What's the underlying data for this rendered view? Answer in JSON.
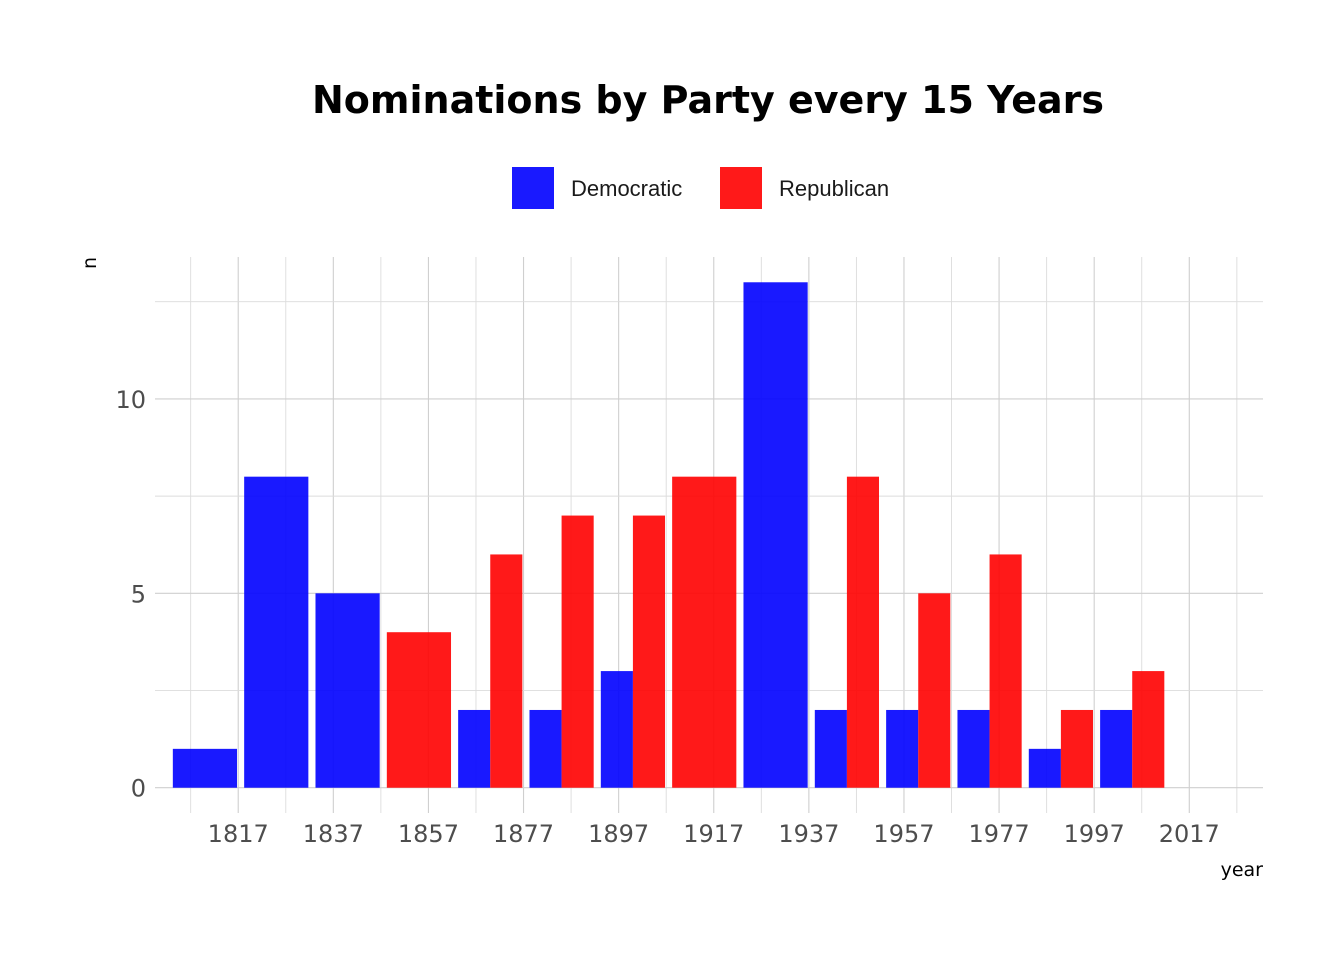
{
  "chart_data": {
    "type": "bar",
    "title": "Nominations by Party every 15 Years",
    "xlabel": "year",
    "ylabel": "n",
    "bar_groups": [
      {
        "bin_center": 1810,
        "Democratic": 1,
        "Republican": null
      },
      {
        "bin_center": 1825,
        "Democratic": 8,
        "Republican": null
      },
      {
        "bin_center": 1840,
        "Democratic": 5,
        "Republican": null
      },
      {
        "bin_center": 1855,
        "Democratic": null,
        "Republican": 4
      },
      {
        "bin_center": 1870,
        "Democratic": 2,
        "Republican": 6
      },
      {
        "bin_center": 1885,
        "Democratic": 2,
        "Republican": 7
      },
      {
        "bin_center": 1900,
        "Democratic": 3,
        "Republican": 7
      },
      {
        "bin_center": 1915,
        "Democratic": null,
        "Republican": 8
      },
      {
        "bin_center": 1930,
        "Democratic": 13,
        "Republican": null
      },
      {
        "bin_center": 1945,
        "Democratic": 2,
        "Republican": 8
      },
      {
        "bin_center": 1960,
        "Democratic": 2,
        "Republican": 5
      },
      {
        "bin_center": 1975,
        "Democratic": 2,
        "Republican": 6
      },
      {
        "bin_center": 1990,
        "Democratic": 1,
        "Republican": 2
      },
      {
        "bin_center": 2005,
        "Democratic": 2,
        "Republican": 3
      }
    ],
    "series": [
      {
        "name": "Democratic",
        "color": "#0000ff"
      },
      {
        "name": "Republican",
        "color": "#ff0000"
      }
    ],
    "x_ticks": [
      1817,
      1837,
      1857,
      1877,
      1897,
      1917,
      1937,
      1957,
      1977,
      1997,
      2017
    ],
    "y_ticks": [
      0,
      5,
      10
    ],
    "xlim": [
      1799.5,
      2032.5
    ],
    "ylim": [
      -0.65,
      13.65
    ],
    "bin_width": 15,
    "grid": true,
    "legend_position": "top"
  }
}
